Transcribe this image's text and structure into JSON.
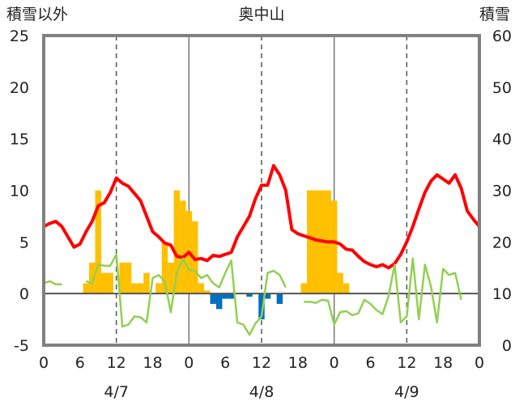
{
  "chart_data": {
    "type": "bar",
    "title": "奥中山",
    "ylabel_left": "積雪以外",
    "ylabel_right": "積雪",
    "ylim_left": [
      -5,
      25
    ],
    "yticks_left": [
      "25",
      "20",
      "15",
      "10",
      "5",
      "0",
      "-5"
    ],
    "ylim_right": [
      0,
      60
    ],
    "yticks_right": [
      "60",
      "50",
      "40",
      "30",
      "20",
      "10",
      "0"
    ],
    "xlim": [
      0,
      72
    ],
    "xticks": [
      "0",
      "6",
      "12",
      "18",
      "0",
      "6",
      "12",
      "18",
      "0",
      "6",
      "12",
      "18",
      "0"
    ],
    "dates": [
      "4/7",
      "4/8",
      "4/9"
    ],
    "grid": "dashed vertical lines at 12:00, solid at 0:00",
    "series": [
      {
        "kind": "bar",
        "axis": "left",
        "color": "#ffc000",
        "x": [
          7,
          8,
          9,
          10,
          11,
          12,
          13,
          14,
          15,
          16,
          17,
          19,
          20,
          21,
          22,
          23,
          24,
          25,
          26,
          27,
          43,
          44,
          45,
          46,
          47,
          48,
          49,
          50,
          51
        ],
        "values": [
          1,
          3,
          10,
          2,
          2,
          0,
          3,
          3,
          1,
          1,
          2,
          1,
          5,
          3,
          10,
          9,
          8,
          7,
          1,
          0.3,
          1,
          10,
          10,
          10,
          10,
          9,
          2,
          1,
          0
        ]
      },
      {
        "kind": "bar",
        "axis": "left",
        "color": "#0070c0",
        "x": [
          28,
          29,
          30,
          31,
          34,
          36,
          37,
          39
        ],
        "values": [
          -1,
          -1.5,
          -0.5,
          -0.5,
          -0.3,
          -2.5,
          -0.5,
          -1
        ]
      },
      {
        "kind": "line",
        "axis": "left",
        "color": "#ff0000",
        "x": [
          0,
          1,
          2,
          3,
          4,
          5,
          6,
          7,
          8,
          9,
          10,
          11,
          12,
          13,
          14,
          15,
          16,
          17,
          18,
          19,
          20,
          21,
          22,
          23,
          24,
          25,
          26,
          27,
          28,
          29,
          30,
          31,
          32,
          33,
          34,
          35,
          36,
          37,
          38,
          39,
          40,
          41,
          42,
          43,
          44,
          45,
          46,
          47,
          48,
          49,
          50,
          51,
          52,
          53,
          54,
          55,
          56,
          57,
          58,
          59,
          60,
          61,
          62,
          63,
          64,
          65,
          66,
          67,
          68,
          69,
          70,
          71,
          72
        ],
        "values": [
          6.5,
          6.8,
          7,
          6.5,
          5.5,
          4.5,
          4.8,
          6,
          7,
          8.5,
          8.8,
          9.8,
          11.2,
          10.7,
          10.4,
          9.7,
          9,
          7.5,
          6,
          5.5,
          4.9,
          4.7,
          3.6,
          3.5,
          4,
          3.3,
          3.4,
          3.2,
          3.7,
          3.6,
          3.8,
          4,
          5.5,
          6.5,
          7.5,
          9.2,
          10.5,
          10.5,
          12.4,
          11.5,
          10,
          6.2,
          5.8,
          5.6,
          5.4,
          5.2,
          5.1,
          5,
          5,
          4.8,
          4.3,
          4.2,
          3.6,
          3.1,
          2.8,
          2.6,
          2.8,
          2.5,
          2.9,
          3.8,
          5,
          6.5,
          8.2,
          9.8,
          10.9,
          11.5,
          11.1,
          10.7,
          11.5,
          10.2,
          8,
          7.2,
          6.5
        ]
      },
      {
        "kind": "line",
        "axis": "left",
        "color": "#92d050",
        "x": [
          0,
          1,
          2,
          3,
          4,
          5,
          6,
          7,
          8,
          9,
          10,
          11,
          12,
          13,
          14,
          15,
          16,
          17,
          18,
          19,
          20,
          21,
          22,
          23,
          24,
          25,
          26,
          27,
          28,
          29,
          30,
          31,
          32,
          33,
          34,
          35,
          36,
          37,
          38,
          39,
          40,
          41,
          42,
          43,
          44,
          45,
          46,
          47,
          48,
          49,
          50,
          51,
          52,
          53,
          54,
          55,
          56,
          57,
          58,
          59,
          60,
          61,
          62,
          63,
          64,
          65,
          66,
          67,
          68,
          69,
          70,
          71,
          72
        ],
        "values": [
          1,
          1.2,
          0.9,
          0.9,
          null,
          null,
          null,
          1.2,
          1,
          2.8,
          2.7,
          2.7,
          3.8,
          -3.2,
          -3,
          -2.2,
          -2.3,
          -2.8,
          1.5,
          1.8,
          1.2,
          -1.8,
          2,
          3.4,
          2.3,
          2.2,
          1.5,
          1.8,
          1,
          0.6,
          2,
          3.2,
          -2.8,
          -3,
          -4,
          -2.9,
          -2.2,
          2,
          2.2,
          1.8,
          0.6,
          null,
          null,
          -0.8,
          -0.8,
          -0.9,
          -0.6,
          -0.7,
          -3,
          -1.8,
          -1.7,
          -2.1,
          -1.9,
          -0.6,
          -1,
          -1.6,
          -2,
          -0.2,
          2.8,
          -2.8,
          -2.2,
          3.4,
          -2.5,
          2.8,
          0.7,
          -2.8,
          2.4,
          1.8,
          2,
          -0.6,
          null,
          null,
          null
        ]
      },
      {
        "kind": "line",
        "axis": "right",
        "color": "#7030a0",
        "x": [
          0,
          72
        ],
        "values": [
          0,
          0
        ]
      }
    ]
  }
}
